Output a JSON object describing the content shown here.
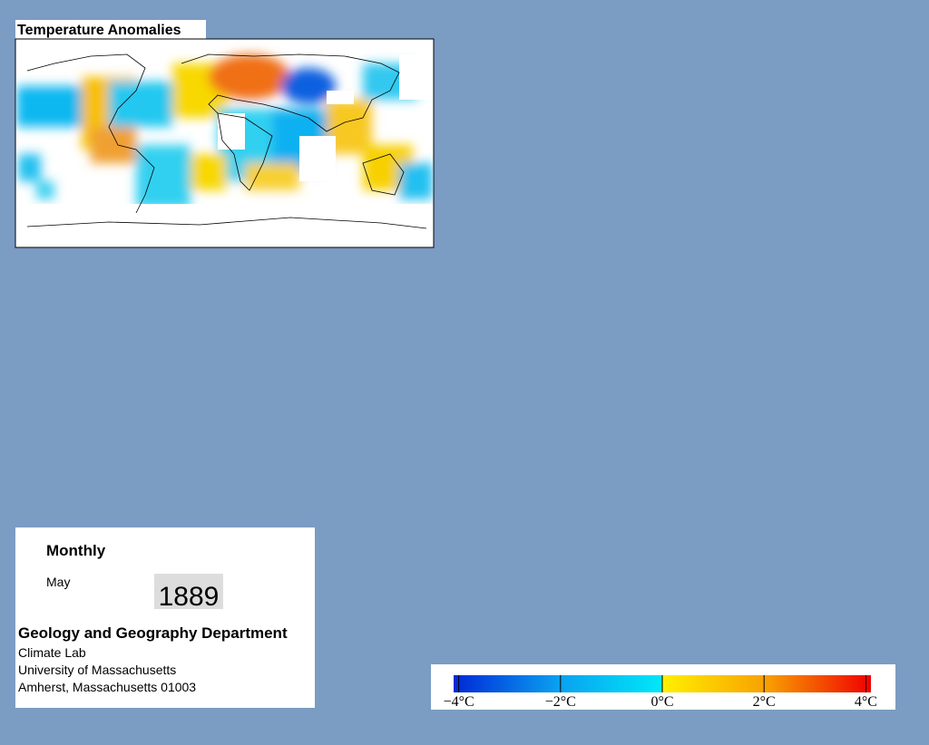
{
  "title": "Temperature Anomalies",
  "info": {
    "period": "Monthly",
    "month": "May",
    "year": 1889,
    "department": "Geology and Geography Department",
    "lines": [
      "Climate Lab",
      "University of Massachusetts",
      "Amherst, Massachusetts 01003"
    ]
  },
  "colorbar": {
    "range": [
      -4.1,
      4.1
    ],
    "ticks": [
      {
        "value": -4,
        "label": "−4°C"
      },
      {
        "value": -2,
        "label": "−2°C"
      },
      {
        "value": 0,
        "label": "0°C"
      },
      {
        "value": 2,
        "label": "2°C"
      },
      {
        "value": 4,
        "label": "4°C"
      }
    ]
  }
}
